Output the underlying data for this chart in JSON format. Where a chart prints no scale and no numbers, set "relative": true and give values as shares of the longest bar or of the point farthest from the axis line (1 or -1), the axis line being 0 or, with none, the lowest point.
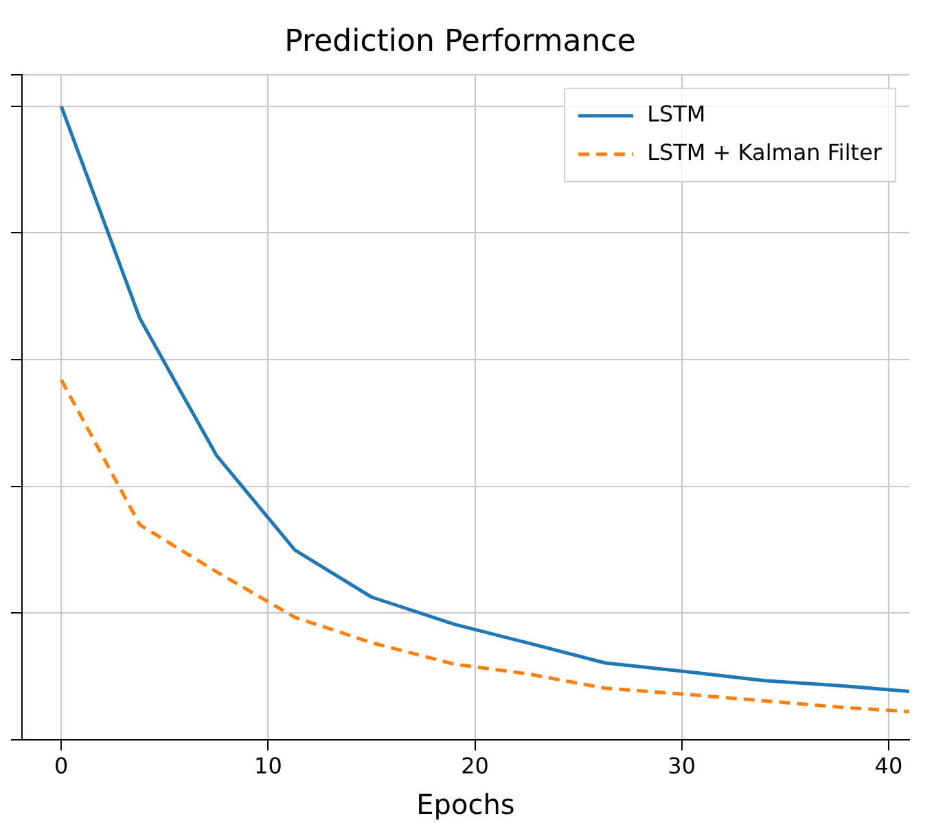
{
  "chart_data": {
    "type": "line",
    "title": "Prediction Performance",
    "xlabel": "Epochs",
    "relative": true,
    "xlim": [
      -1.9,
      41
    ],
    "xticks": [
      0,
      10,
      20,
      30,
      40
    ],
    "grid": true,
    "legend": "top right",
    "marker": "none",
    "series": [
      {
        "name": "LSTM",
        "color": "#1f77b4",
        "line_style": "solid",
        "x": [
          0,
          3.8,
          7.5,
          11.3,
          15,
          19,
          22.5,
          26.3,
          30,
          34,
          37.7,
          41
        ],
        "values": [
          1.0,
          0.665,
          0.449,
          0.299,
          0.225,
          0.182,
          0.153,
          0.121,
          0.108,
          0.093,
          0.085,
          0.076
        ]
      },
      {
        "name": "LSTM + Kalman Filter",
        "color": "#ff7f0e",
        "line_style": "dashed",
        "x": [
          0,
          3.8,
          7.5,
          11.3,
          15,
          19,
          22.5,
          26.3,
          30,
          34,
          37.7,
          41
        ],
        "values": [
          0.568,
          0.339,
          0.265,
          0.193,
          0.153,
          0.119,
          0.104,
          0.081,
          0.072,
          0.061,
          0.051,
          0.044
        ]
      }
    ]
  }
}
